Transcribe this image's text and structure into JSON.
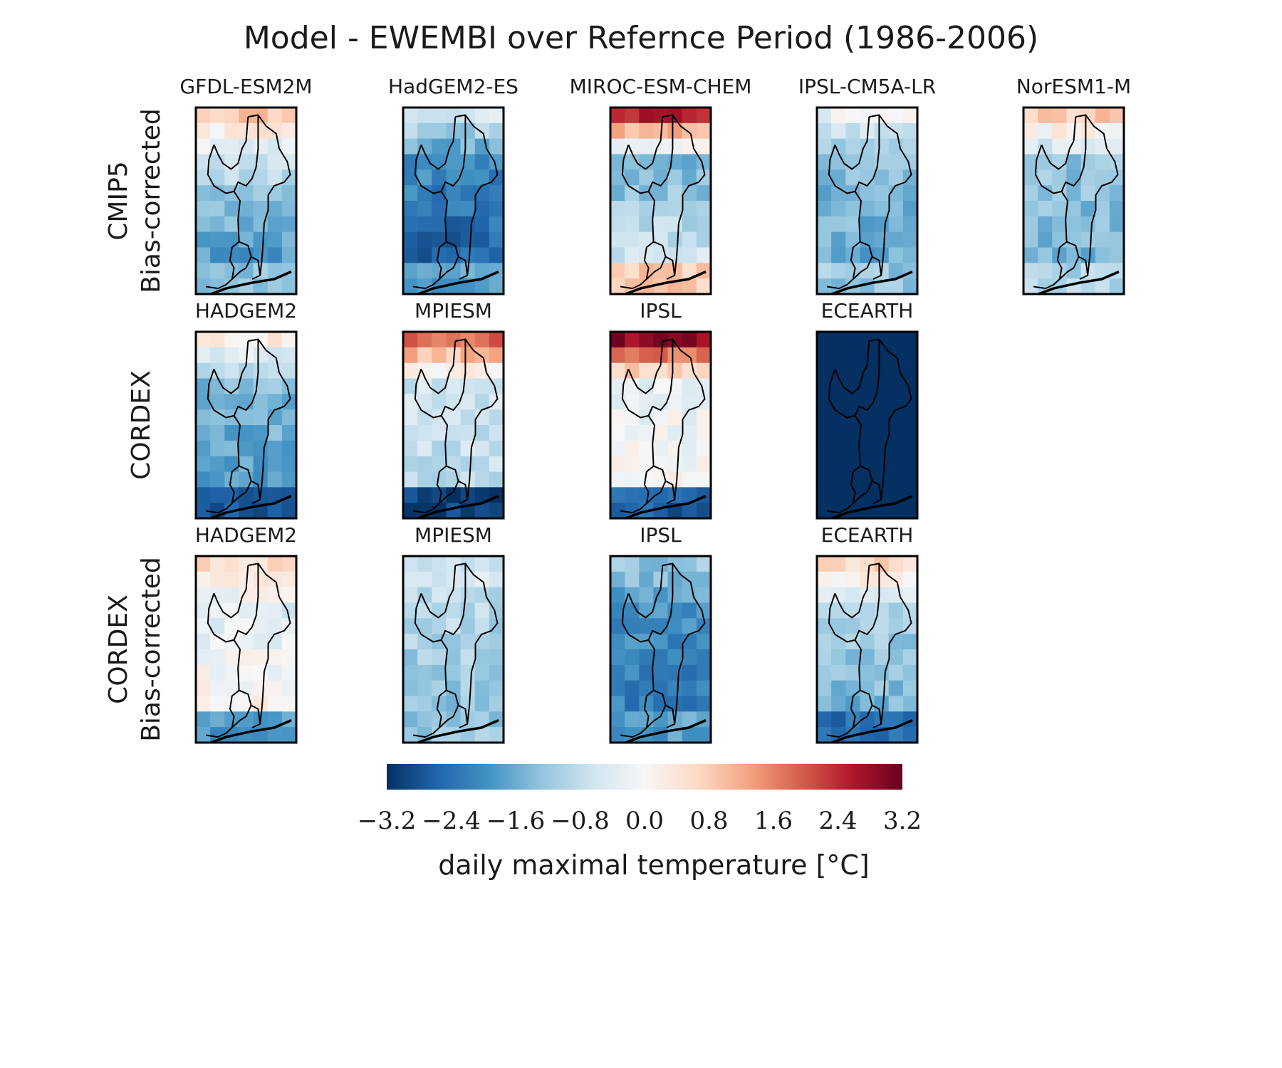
{
  "title": "Model - EWEMBI over Refernce Period (1986-2006)",
  "colormap": {
    "stops": [
      "#053061",
      "#2166ac",
      "#4393c3",
      "#92c5de",
      "#d1e5f0",
      "#f7f7f7",
      "#fddbc7",
      "#f4a582",
      "#d6604d",
      "#b2182b",
      "#67001f"
    ]
  },
  "chart_data": {
    "type": "heatmap",
    "title": "Model - EWEMBI over Refernce Period (1986-2006)",
    "vmin": -3.2,
    "vmax": 3.2,
    "grid_rows": 12,
    "grid_cols": 7,
    "rows": [
      {
        "label_lines": [
          "CMIP5",
          "Bias-corrected"
        ],
        "panels": [
          {
            "name": "GFDL-ESM2M",
            "north": 0.8,
            "mid": -0.8,
            "south": -1.8,
            "coast": -1.2
          },
          {
            "name": "HadGEM2-ES",
            "north": -0.6,
            "mid": -2.0,
            "south": -2.6,
            "coast": -1.8
          },
          {
            "name": "MIROC-ESM-CHEM",
            "north": 2.6,
            "mid": -1.6,
            "south": -0.6,
            "coast": 0.8
          },
          {
            "name": "IPSL-CM5A-LR",
            "north": -0.2,
            "mid": -1.4,
            "south": -1.6,
            "coast": -1.2
          },
          {
            "name": "NorESM1-M",
            "north": 0.8,
            "mid": -1.2,
            "south": -1.5,
            "coast": -1.0
          }
        ]
      },
      {
        "label_lines": [
          "CORDEX"
        ],
        "panels": [
          {
            "name": "HADGEM2",
            "north": 0.2,
            "mid": -1.4,
            "south": -1.8,
            "coast": -2.8
          },
          {
            "name": "MPIESM",
            "north": 1.8,
            "mid": -0.6,
            "south": -0.8,
            "coast": -3.0
          },
          {
            "name": "IPSL",
            "north": 2.8,
            "mid": -0.2,
            "south": 0.0,
            "coast": -2.6
          },
          {
            "name": "ECEARTH",
            "north": -3.2,
            "mid": -3.2,
            "south": -3.2,
            "coast": -3.2
          }
        ]
      },
      {
        "label_lines": [
          "CORDEX",
          "Bias-corrected"
        ],
        "panels": [
          {
            "name": "HADGEM2",
            "north": 0.6,
            "mid": -0.4,
            "south": 0.2,
            "coast": -1.8
          },
          {
            "name": "MPIESM",
            "north": -0.5,
            "mid": -0.9,
            "south": -1.3,
            "coast": -1.2
          },
          {
            "name": "IPSL",
            "north": -1.2,
            "mid": -2.0,
            "south": -2.2,
            "coast": -1.8
          },
          {
            "name": "ECEARTH",
            "north": 0.6,
            "mid": -1.0,
            "south": -1.5,
            "coast": -2.4
          }
        ]
      }
    ],
    "colorbar": {
      "ticks": [
        -3.2,
        -2.4,
        -1.6,
        -0.8,
        0.0,
        0.8,
        1.6,
        2.4,
        3.2
      ],
      "tick_labels": [
        "−3.2",
        "−2.4",
        "−1.6",
        "−0.8",
        "0.0",
        "0.8",
        "1.6",
        "2.4",
        "3.2"
      ],
      "label": "daily maximal temperature [°C]"
    }
  }
}
